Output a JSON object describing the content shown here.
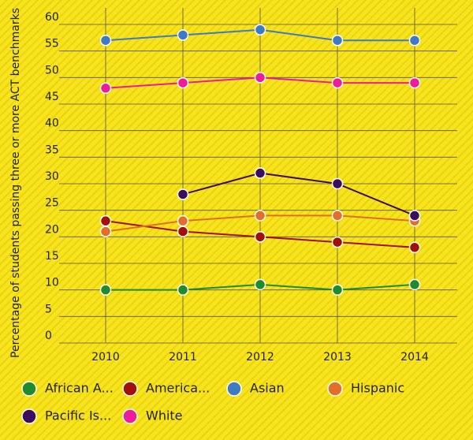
{
  "chart_data": {
    "type": "line",
    "y_label": "Percentage of students passing three or more ACT benchmarks",
    "x": [
      "2010",
      "2011",
      "2012",
      "2013",
      "2014"
    ],
    "series": [
      {
        "name": "African A...",
        "color": "#1f8b2c",
        "values": [
          10,
          10,
          11,
          10,
          11
        ]
      },
      {
        "name": "America...",
        "color": "#a10f0f",
        "values": [
          23,
          21,
          20,
          19,
          18
        ]
      },
      {
        "name": "Asian",
        "color": "#3e7bc0",
        "values": [
          57,
          58,
          59,
          57,
          57
        ]
      },
      {
        "name": "Hispanic",
        "color": "#e06f2b",
        "values": [
          21,
          23,
          24,
          24,
          23
        ]
      },
      {
        "name": "Pacific Is...",
        "color": "#3c0d5c",
        "values": [
          null,
          28,
          32,
          30,
          24
        ]
      },
      {
        "name": "White",
        "color": "#ec1c9a",
        "values": [
          48,
          49,
          50,
          49,
          49
        ]
      }
    ],
    "ylim": [
      0,
      60
    ],
    "yticks": [
      0,
      5,
      10,
      15,
      20,
      25,
      30,
      35,
      40,
      45,
      50,
      55,
      60
    ],
    "grid": true
  }
}
